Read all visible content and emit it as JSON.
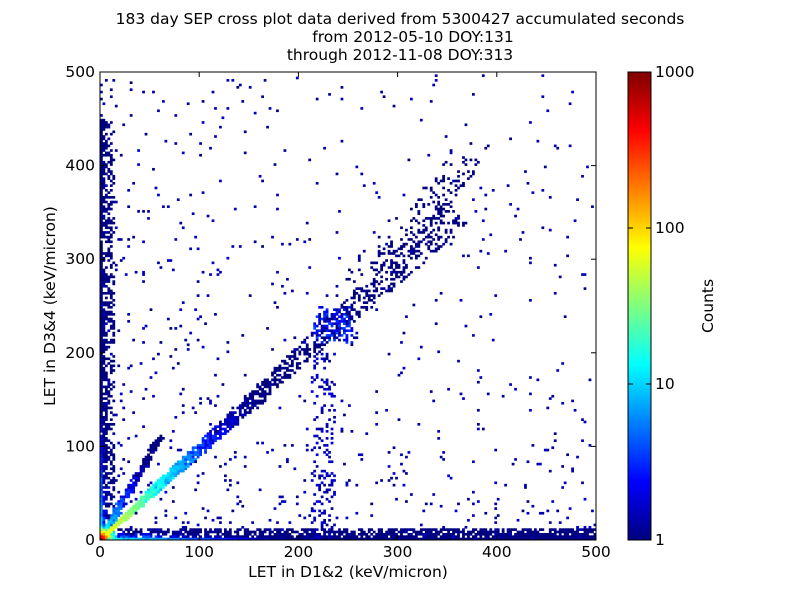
{
  "chart_data": {
    "type": "heatmap",
    "title": [
      "183 day SEP cross plot data derived from 5300427 accumulated seconds",
      "from 2012-05-10 DOY:131",
      "through 2012-11-08 DOY:313"
    ],
    "xlabel": "LET in D1&2 (keV/micron)",
    "ylabel": "LET in D3&4 (keV/micron)",
    "xlim": [
      0,
      500
    ],
    "ylim": [
      0,
      500
    ],
    "x_ticks": [
      0,
      100,
      200,
      300,
      400,
      500
    ],
    "y_ticks": [
      0,
      100,
      200,
      300,
      400,
      500
    ],
    "grid": false,
    "colorbar": {
      "label": "Counts",
      "scale": "log",
      "range": [
        1,
        1000
      ],
      "ticks": [
        "1",
        "10",
        "100",
        "1000"
      ],
      "colormap": "jet",
      "colors": [
        "#00007f",
        "#0000ff",
        "#007fff",
        "#00ffff",
        "#7fff7f",
        "#ffff00",
        "#ff7f00",
        "#ff0000",
        "#7f0000"
      ]
    },
    "features": [
      {
        "name": "origin core",
        "x": [
          0,
          10
        ],
        "y": [
          0,
          10
        ],
        "counts": 1000
      },
      {
        "name": "diagonal band",
        "x": [
          0,
          350
        ],
        "y": [
          0,
          350
        ],
        "counts": 30
      },
      {
        "name": "x-axis band",
        "x": [
          0,
          500
        ],
        "y": [
          0,
          5
        ],
        "counts": 5
      },
      {
        "name": "y-axis band",
        "x": [
          0,
          5
        ],
        "y": [
          0,
          450
        ],
        "counts": 5
      },
      {
        "name": "cluster",
        "x": [
          215,
          255
        ],
        "y": [
          210,
          250
        ],
        "counts": 3
      }
    ]
  }
}
